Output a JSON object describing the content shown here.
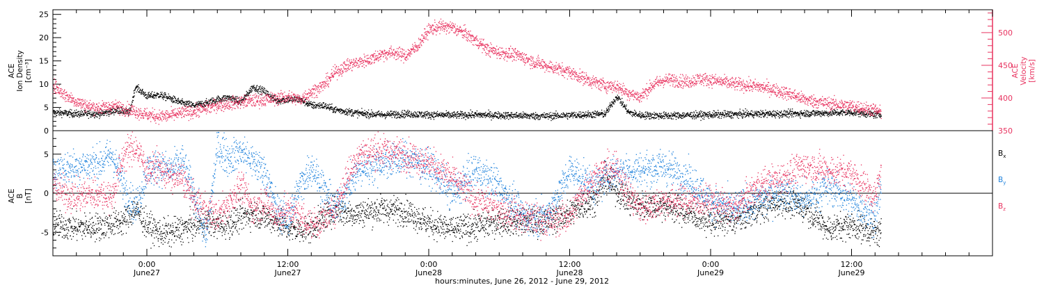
{
  "colors": {
    "black": "#000000",
    "pink": "#e8325f",
    "blue": "#1e82dc"
  },
  "xaxis": {
    "label": "hours:minutes, June 26, 2012 - June 29, 2012",
    "ticks": [
      {
        "time": "0:00",
        "date": "June27",
        "hours": 24
      },
      {
        "time": "12:00",
        "date": "June27",
        "hours": 36
      },
      {
        "time": "0:00",
        "date": "June28",
        "hours": 48
      },
      {
        "time": "12:00",
        "date": "June28",
        "hours": 60
      },
      {
        "time": "0:00",
        "date": "June29",
        "hours": 72
      },
      {
        "time": "12:00",
        "date": "June29",
        "hours": 84
      }
    ],
    "range_hours": [
      16,
      96
    ]
  },
  "chart_data": [
    {
      "type": "scatter",
      "panel": "top",
      "ylabel_left": [
        "ACE",
        "Ion Density",
        "[cm⁻³]"
      ],
      "ylabel_right": [
        "ACE",
        "Velocity",
        "[km/s]"
      ],
      "ylim_left": [
        0,
        26
      ],
      "yticks_left": [
        0,
        5,
        10,
        15,
        20,
        25
      ],
      "ylim_right": [
        350,
        535
      ],
      "yticks_right": [
        350,
        400,
        450,
        500
      ],
      "series": [
        {
          "axis": "left",
          "color": "#000000",
          "x": [
            16,
            18,
            20,
            21.5,
            22.5,
            23,
            24,
            25,
            26,
            27,
            28,
            29,
            30,
            31,
            32,
            33,
            34,
            35,
            36,
            37,
            38,
            39,
            40,
            42,
            44,
            46,
            48,
            50,
            52,
            54,
            56,
            58,
            60,
            61,
            62,
            63,
            64,
            65,
            66,
            68,
            70,
            72,
            74,
            76,
            78,
            80,
            82,
            84,
            85,
            86,
            86.5
          ],
          "y": [
            4,
            3.7,
            3.7,
            4.5,
            4,
            9.5,
            7.5,
            7.8,
            7,
            6,
            5.5,
            6,
            6.8,
            7.2,
            6.2,
            9.5,
            8.5,
            6.5,
            6.8,
            6.8,
            5.5,
            5.5,
            4.6,
            3.8,
            3.5,
            3.7,
            3.5,
            3.4,
            3.5,
            3.4,
            3.3,
            3.2,
            3.4,
            3.5,
            3.6,
            3.7,
            7.5,
            4,
            3.4,
            3.3,
            3.4,
            3.5,
            3.6,
            3.7,
            3.7,
            3.8,
            3.9,
            4,
            3.8,
            3.5,
            3.6
          ],
          "noise": 0.7
        },
        {
          "axis": "right",
          "color": "#e8325f",
          "x": [
            16,
            17,
            18,
            19,
            20,
            21,
            22,
            23,
            24,
            25,
            26,
            27,
            28,
            29,
            30,
            31,
            32,
            33,
            34,
            35,
            36,
            37,
            38,
            39,
            40,
            41,
            42,
            43,
            44,
            45,
            46,
            47,
            48,
            49,
            50,
            51,
            52,
            53,
            54,
            55,
            56,
            57,
            58,
            59,
            60,
            61,
            62,
            63,
            64,
            65,
            66,
            67,
            68,
            69,
            70,
            71,
            72,
            73,
            74,
            75,
            76,
            77,
            78,
            79,
            80,
            81,
            82,
            83,
            84,
            85,
            86,
            86.5
          ],
          "y": [
            420,
            405,
            395,
            388,
            385,
            388,
            385,
            380,
            375,
            372,
            374,
            378,
            380,
            385,
            390,
            392,
            395,
            396,
            398,
            400,
            402,
            398,
            410,
            420,
            440,
            450,
            455,
            460,
            468,
            470,
            465,
            480,
            505,
            510,
            508,
            500,
            488,
            475,
            470,
            468,
            463,
            455,
            450,
            445,
            440,
            432,
            425,
            420,
            418,
            408,
            402,
            420,
            428,
            428,
            425,
            430,
            428,
            425,
            422,
            420,
            418,
            415,
            410,
            405,
            398,
            395,
            392,
            390,
            388,
            385,
            382,
            378
          ],
          "noise": 9
        }
      ]
    },
    {
      "type": "scatter",
      "panel": "bottom",
      "ylabel_left": [
        "ACE",
        "B",
        "[nT]"
      ],
      "ylim": [
        -8,
        8
      ],
      "yticks": [
        -5,
        0,
        5
      ],
      "legend": [
        "Bx",
        "By",
        "Bz"
      ],
      "series": [
        {
          "name": "Bx",
          "color": "#000000",
          "x": [
            16,
            18,
            20,
            22,
            23,
            24,
            25,
            26,
            27,
            28,
            29,
            30,
            31,
            32,
            33,
            34,
            35,
            36,
            37,
            38,
            39,
            40,
            41,
            42,
            44,
            46,
            48,
            50,
            52,
            54,
            56,
            58,
            60,
            61,
            62,
            63,
            64,
            65,
            66,
            68,
            70,
            72,
            74,
            76,
            78,
            80,
            82,
            84,
            86,
            86.5
          ],
          "y": [
            -4,
            -4.3,
            -4.2,
            -3.5,
            -2,
            -4,
            -5,
            -5,
            -4.5,
            -4,
            -3.5,
            -4,
            -3.8,
            -3,
            -2.5,
            -3,
            -3.5,
            -4.5,
            -4.6,
            -4.5,
            -3,
            -2,
            -2.5,
            -2.5,
            -2,
            -2.2,
            -3.8,
            -4.6,
            -4.2,
            -3.5,
            -3.6,
            -3.5,
            -2.5,
            -1.5,
            -1,
            2,
            0.5,
            -1,
            -1.5,
            -1.5,
            -2.5,
            -3.5,
            -3.5,
            -2,
            -1,
            -1.8,
            -4.5,
            -4,
            -5,
            -5
          ],
          "noise": 1.6
        },
        {
          "name": "By",
          "color": "#1e82dc",
          "x": [
            16,
            18,
            20,
            21,
            22,
            23,
            24,
            25,
            26,
            27,
            28,
            29,
            30,
            31,
            32,
            33,
            34,
            35,
            36,
            37,
            38,
            40,
            42,
            44,
            46,
            48,
            50,
            52,
            54,
            56,
            58,
            60,
            61,
            62,
            64,
            66,
            68,
            70,
            72,
            74,
            76,
            78,
            80,
            82,
            84,
            86,
            86.5
          ],
          "y": [
            3,
            3.5,
            4,
            5,
            1,
            -2,
            3,
            3.5,
            3,
            4,
            0,
            -6,
            6,
            4.5,
            5.5,
            4,
            3,
            -2,
            -3.5,
            1,
            3.5,
            -2,
            3,
            4,
            4.5,
            3.5,
            0,
            3,
            1,
            -3,
            -3,
            3,
            2,
            1,
            3,
            3,
            3.5,
            2,
            -1,
            -2,
            -1,
            0.5,
            -1,
            1,
            -1,
            -3,
            1
          ],
          "noise": 2
        },
        {
          "name": "Bz",
          "color": "#e8325f",
          "x": [
            16,
            17,
            18,
            19,
            20,
            21,
            22,
            23,
            24,
            25,
            26,
            27,
            28,
            29,
            30,
            31,
            32,
            33,
            34,
            35,
            36,
            37,
            38,
            39,
            40,
            41,
            42,
            44,
            46,
            48,
            50,
            52,
            54,
            56,
            58,
            60,
            61,
            62,
            63,
            64,
            65,
            66,
            68,
            70,
            72,
            74,
            76,
            78,
            80,
            82,
            84,
            86,
            86.5
          ],
          "y": [
            1,
            0,
            -0.5,
            0,
            0,
            -0.5,
            5,
            6,
            3,
            3.5,
            2,
            2,
            -1,
            -2,
            -3,
            -1,
            1,
            -2,
            -1,
            -3,
            -2,
            -3,
            -4,
            -3.5,
            -2,
            2,
            5,
            5.5,
            5,
            4,
            2,
            -1,
            -2,
            -3,
            -3.5,
            -3,
            0,
            2,
            3,
            3,
            0,
            -2,
            -1,
            -1,
            -1,
            -2,
            1,
            2,
            3.5,
            3,
            2.5,
            -0.5,
            3
          ],
          "noise": 1.8
        }
      ]
    }
  ]
}
